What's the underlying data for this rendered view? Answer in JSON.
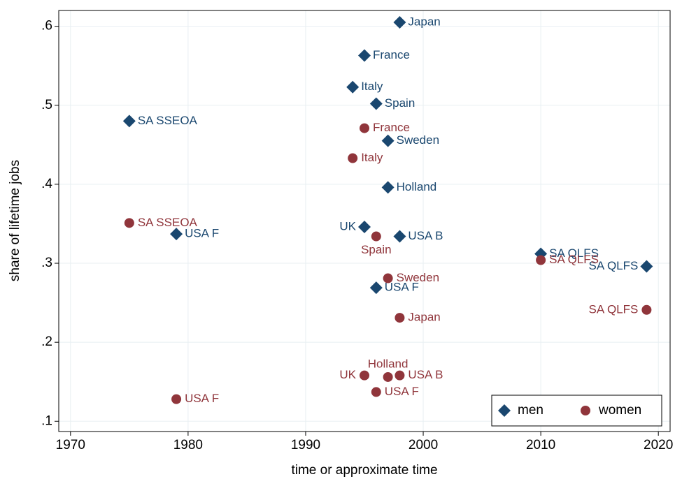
{
  "chart_data": {
    "type": "scatter",
    "x_label": "time or approximate time",
    "y_label": "share of lifetime jobs",
    "xlim": [
      1969,
      2021
    ],
    "ylim": [
      0.087,
      0.62
    ],
    "xticks": [
      1970,
      1980,
      1990,
      2000,
      2010,
      2020
    ],
    "yticks": [
      {
        "value": 0.1,
        "label": ".1"
      },
      {
        "value": 0.2,
        "label": ".2"
      },
      {
        "value": 0.3,
        "label": ".3"
      },
      {
        "value": 0.4,
        "label": ".4"
      },
      {
        "value": 0.5,
        "label": ".5"
      },
      {
        "value": 0.6,
        "label": ".6"
      }
    ],
    "grid": true,
    "legend": "lower right",
    "series": [
      {
        "name": "men",
        "color": "#1a476f",
        "marker": "diamond",
        "x": [
          1998,
          1995,
          1994,
          1996,
          1975,
          1997,
          1997,
          1995,
          1979,
          1998,
          2010,
          2019,
          1996
        ],
        "values": [
          0.605,
          0.563,
          0.523,
          0.502,
          0.48,
          0.455,
          0.396,
          0.346,
          0.337,
          0.334,
          0.312,
          0.296,
          0.269
        ],
        "labels": [
          "Japan",
          "France",
          "Italy",
          "Spain",
          "SA SSEOA",
          "Sweden",
          "Holland",
          "UK",
          "USA F",
          "USA B",
          "SA QLFS",
          "SA QLFS",
          "USA F"
        ]
      },
      {
        "name": "women",
        "color": "#90353b",
        "marker": "circle",
        "x": [
          1995,
          1994,
          1975,
          1996,
          2010,
          1997,
          2019,
          1998,
          1995,
          1997,
          1998,
          1996,
          1979
        ],
        "values": [
          0.471,
          0.433,
          0.351,
          0.334,
          0.304,
          0.281,
          0.241,
          0.231,
          0.158,
          0.156,
          0.158,
          0.137,
          0.128
        ],
        "labels": [
          "France",
          "Italy",
          "SA SSEOA",
          "Spain",
          "SA QLFS",
          "Sweden",
          "SA QLFS",
          "Japan",
          "UK",
          "Holland",
          "USA B",
          "USA F",
          "USA F"
        ]
      }
    ]
  }
}
